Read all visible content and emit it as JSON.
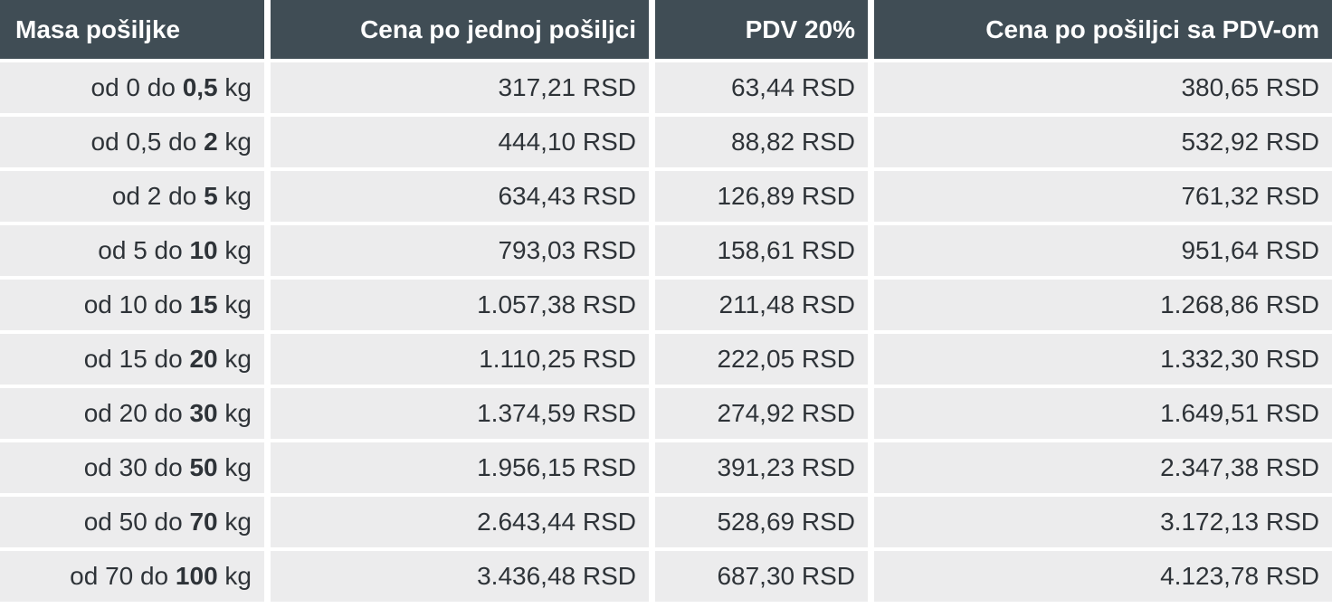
{
  "chart_data": {
    "type": "table",
    "title": "",
    "columns": [
      "Masa pošiljke",
      "Cena po jednoj pošiljci",
      "PDV 20%",
      "Cena po pošiljci sa PDV-om"
    ],
    "rows": [
      {
        "mass_prefix": "od 0 do",
        "mass_value": "0,5",
        "mass_unit": "kg",
        "price": "317,21 RSD",
        "vat": "63,44 RSD",
        "total": "380,65 RSD"
      },
      {
        "mass_prefix": "od 0,5 do",
        "mass_value": "2",
        "mass_unit": "kg",
        "price": "444,10 RSD",
        "vat": "88,82 RSD",
        "total": "532,92 RSD"
      },
      {
        "mass_prefix": "od 2 do",
        "mass_value": "5",
        "mass_unit": "kg",
        "price": "634,43 RSD",
        "vat": "126,89 RSD",
        "total": "761,32 RSD"
      },
      {
        "mass_prefix": "od 5 do",
        "mass_value": "10",
        "mass_unit": "kg",
        "price": "793,03 RSD",
        "vat": "158,61 RSD",
        "total": "951,64 RSD"
      },
      {
        "mass_prefix": "od 10 do",
        "mass_value": "15",
        "mass_unit": "kg",
        "price": "1.057,38 RSD",
        "vat": "211,48 RSD",
        "total": "1.268,86 RSD"
      },
      {
        "mass_prefix": "od 15 do",
        "mass_value": "20",
        "mass_unit": "kg",
        "price": "1.110,25 RSD",
        "vat": "222,05 RSD",
        "total": "1.332,30 RSD"
      },
      {
        "mass_prefix": "od 20 do",
        "mass_value": "30",
        "mass_unit": "kg",
        "price": "1.374,59 RSD",
        "vat": "274,92 RSD",
        "total": "1.649,51 RSD"
      },
      {
        "mass_prefix": "od 30 do",
        "mass_value": "50",
        "mass_unit": "kg",
        "price": "1.956,15 RSD",
        "vat": "391,23 RSD",
        "total": "2.347,38 RSD"
      },
      {
        "mass_prefix": "od 50 do",
        "mass_value": "70",
        "mass_unit": "kg",
        "price": "2.643,44 RSD",
        "vat": "528,69 RSD",
        "total": "3.172,13 RSD"
      },
      {
        "mass_prefix": "od 70 do",
        "mass_value": "100",
        "mass_unit": "kg",
        "price": "3.436,48 RSD",
        "vat": "687,30 RSD",
        "total": "4.123,78 RSD"
      }
    ]
  },
  "colors": {
    "header_bg": "#404d55",
    "header_text": "#ffffff",
    "row_bg": "#ececed",
    "row_text": "#2e3338",
    "separator": "#ffffff"
  }
}
